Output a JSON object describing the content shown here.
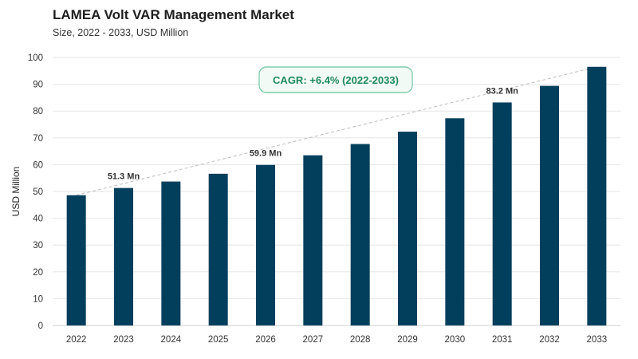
{
  "header": {
    "title": "LAMEA Volt VAR Management Market",
    "subtitle": "Size, 2022 - 2033, USD Million"
  },
  "chart_data": {
    "type": "bar",
    "title": "LAMEA Volt VAR Management Market",
    "subtitle": "Size, 2022 - 2033, USD Million",
    "xlabel": "",
    "ylabel": "USD Million",
    "ylim": [
      0,
      100
    ],
    "yticks": [
      0,
      10,
      20,
      30,
      40,
      50,
      60,
      70,
      80,
      90,
      100
    ],
    "categories": [
      "2022",
      "2023",
      "2024",
      "2025",
      "2026",
      "2027",
      "2028",
      "2029",
      "2030",
      "2031",
      "2032",
      "2033"
    ],
    "values": [
      48.6,
      51.3,
      53.7,
      56.6,
      59.9,
      63.5,
      67.7,
      72.3,
      77.3,
      83.2,
      89.4,
      96.5
    ],
    "data_labels": [
      {
        "index": 1,
        "text": "51.3 Mn"
      },
      {
        "index": 4,
        "text": "59.9 Mn"
      },
      {
        "index": 9,
        "text": "83.2 Mn"
      }
    ],
    "annotation": "CAGR: +6.4% (2022-2033)",
    "grid": true,
    "trendline": "dashed",
    "colors": {
      "bar": "#023f5c",
      "grid": "#e6e6e6",
      "trend": "#bdbdbd",
      "cagr_text": "#1f8a5e",
      "cagr_border": "#7fcfae",
      "cagr_fill": "#f2faf6"
    }
  }
}
